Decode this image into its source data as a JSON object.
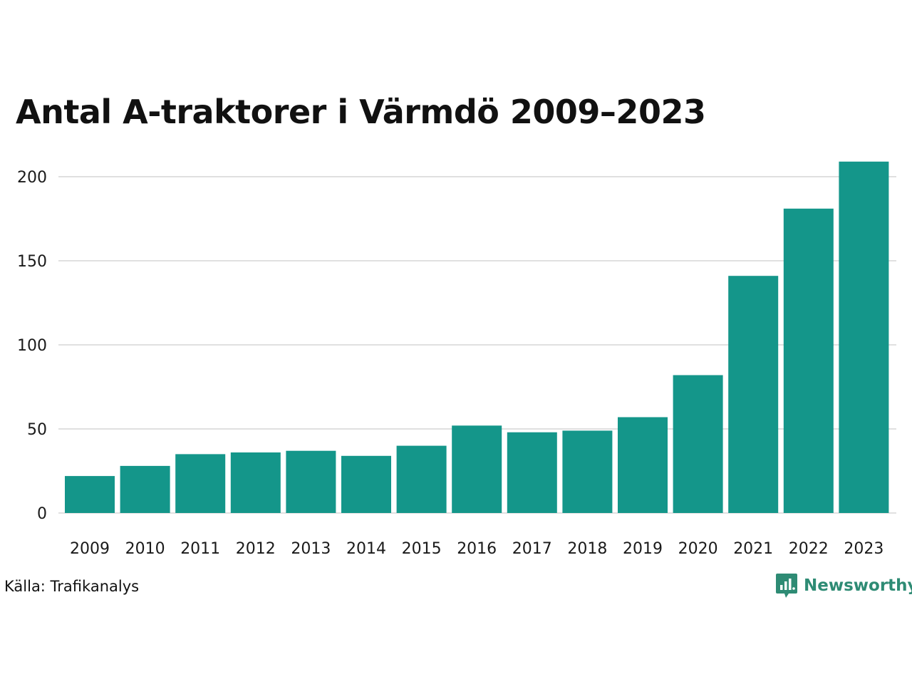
{
  "chart_data": {
    "type": "bar",
    "title": "Antal A-traktorer i Värmdö 2009–2023",
    "xlabel": "",
    "ylabel": "",
    "categories": [
      "2009",
      "2010",
      "2011",
      "2012",
      "2013",
      "2014",
      "2015",
      "2016",
      "2017",
      "2018",
      "2019",
      "2020",
      "2021",
      "2022",
      "2023"
    ],
    "values": [
      22,
      28,
      35,
      36,
      37,
      34,
      40,
      52,
      48,
      49,
      57,
      82,
      141,
      181,
      209
    ],
    "ylim": [
      0,
      210
    ],
    "yticks": [
      0,
      50,
      100,
      150,
      200
    ],
    "grid": true,
    "legend": "none",
    "bar_color": "#14968a"
  },
  "footer": {
    "source": "Källa: Trafikanalys",
    "brand": "Newsworthy",
    "brand_color": "#2e8b74",
    "brand_icon": "bar-chart-speech-bubble-icon"
  }
}
